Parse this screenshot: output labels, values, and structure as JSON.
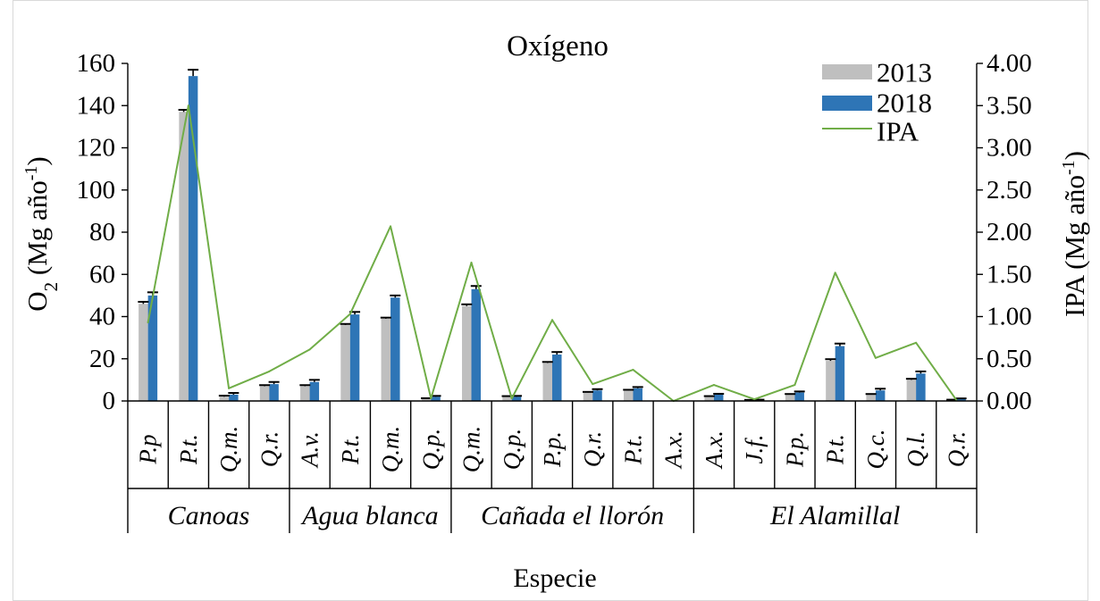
{
  "chart_data": {
    "type": "bar",
    "title": "Oxígeno",
    "categories": [
      "P.p",
      "P.t.",
      "Q.m.",
      "Q.r.",
      "A.v.",
      "P.t.",
      "Q.m.",
      "Q.p.",
      "Q.m.",
      "Q.p.",
      "P.p.",
      "Q.r.",
      "P.t.",
      "A.x.",
      "A.x.",
      "J.f.",
      "P.p.",
      "P.t.",
      "Q.c.",
      "Q.l.",
      "Q.r."
    ],
    "groups": [
      {
        "label": "Canoas",
        "count": 4
      },
      {
        "label": "Agua blanca",
        "count": 4
      },
      {
        "label": "Cañada el llorón",
        "count": 6
      },
      {
        "label": "El Alamillal",
        "count": 7
      }
    ],
    "series": [
      {
        "name": "2013",
        "color": "#bfbfbf",
        "values": [
          46,
          137,
          2,
          7,
          7,
          36,
          39,
          1,
          45,
          2,
          18,
          4,
          5,
          0,
          2,
          0.4,
          3,
          19,
          3,
          10,
          0.5
        ],
        "error": [
          1,
          1,
          0.5,
          0.5,
          0.5,
          0.5,
          0.5,
          0.3,
          0.8,
          0.3,
          0.5,
          0.3,
          0.3,
          0,
          0.3,
          0.1,
          0.3,
          0.8,
          0.3,
          0.5,
          0.1
        ]
      },
      {
        "name": "2018",
        "color": "#2e75b6",
        "values": [
          50,
          154,
          3,
          8,
          9,
          41,
          49,
          2,
          53,
          2,
          22,
          5,
          6,
          0,
          3,
          0.5,
          4,
          26,
          5,
          13,
          1
        ],
        "error": [
          1.5,
          3,
          0.8,
          1,
          1,
          1.2,
          1,
          0.4,
          1.5,
          0.4,
          1.2,
          0.6,
          0.6,
          0,
          0.4,
          0.1,
          0.5,
          1.2,
          0.8,
          1,
          0.2
        ]
      }
    ],
    "ylim": [
      0,
      160
    ],
    "yticks": [
      "0",
      "20",
      "40",
      "60",
      "80",
      "100",
      "120",
      "140",
      "160"
    ],
    "ylabel": {
      "prefix": "O",
      "sub": "2",
      "middle": " (Mg año",
      "sup": "-1",
      "suffix": ")"
    },
    "secondary": {
      "type": "line",
      "name": "IPA",
      "color": "#70ad47",
      "values": [
        0.93,
        3.5,
        0.15,
        0.35,
        0.61,
        1.03,
        2.07,
        0.03,
        1.64,
        0.03,
        0.96,
        0.2,
        0.37,
        0.0,
        0.19,
        0.02,
        0.19,
        1.52,
        0.51,
        0.69,
        0.01
      ],
      "ylim": [
        0,
        4
      ],
      "yticks": [
        "0.00",
        "0.50",
        "1.00",
        "1.50",
        "2.00",
        "2.50",
        "3.00",
        "3.50",
        "4.00"
      ],
      "ylabel": {
        "prefix": "IPA (Mg año",
        "sup": "-1",
        "suffix": ")"
      }
    },
    "xlabel": "Especie",
    "grid": false,
    "legend": "top-right",
    "axis_color": "#000000"
  }
}
